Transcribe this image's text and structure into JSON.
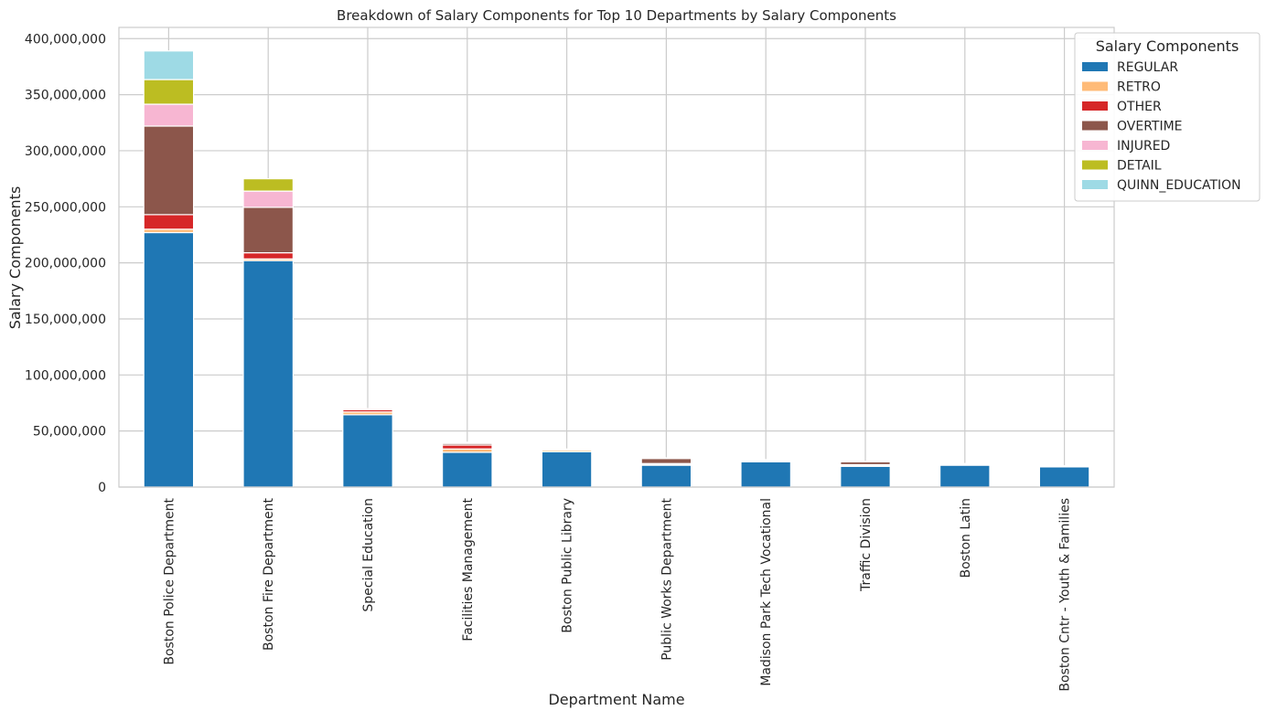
{
  "chart_data": {
    "type": "bar",
    "stacked": true,
    "title": "Breakdown of Salary Components for Top 10 Departments by Salary Components",
    "xlabel": "Department Name",
    "ylabel": "Salary Components",
    "ylim": [
      0,
      410000000
    ],
    "yticks": [
      0,
      50000000,
      100000000,
      150000000,
      200000000,
      250000000,
      300000000,
      350000000,
      400000000
    ],
    "ytick_labels": [
      "0",
      "50,000,000",
      "100,000,000",
      "150,000,000",
      "200,000,000",
      "250,000,000",
      "300,000,000",
      "350,000,000",
      "400,000,000"
    ],
    "grid": true,
    "legend_title": "Salary Components",
    "legend_position": "top-right",
    "categories": [
      "Boston Police Department",
      "Boston Fire Department",
      "Special Education",
      "Facilities Management",
      "Boston Public Library",
      "Public Works Department",
      "Madison Park Tech Vocational",
      "Traffic Division",
      "Boston Latin",
      "Boston Cntr - Youth & Families"
    ],
    "series": [
      {
        "name": "REGULAR",
        "color": "#1f77b4",
        "values": [
          227000000,
          202000000,
          64500000,
          31000000,
          31500000,
          19500000,
          22500000,
          18500000,
          19500000,
          18000000
        ]
      },
      {
        "name": "RETRO",
        "color": "#ffbb78",
        "values": [
          3000000,
          1500000,
          2500000,
          3000000,
          1500000,
          500000,
          1000000,
          500000,
          1000000,
          500000
        ]
      },
      {
        "name": "OTHER",
        "color": "#d62728",
        "values": [
          13000000,
          5500000,
          2000000,
          3500000,
          500000,
          1000000,
          500000,
          1000000,
          500000,
          500000
        ]
      },
      {
        "name": "OVERTIME",
        "color": "#8c564b",
        "values": [
          79000000,
          40500000,
          500000,
          1500000,
          500000,
          4500000,
          500000,
          2500000,
          0,
          0
        ]
      },
      {
        "name": "INJURED",
        "color": "#f7b6d2",
        "values": [
          19500000,
          14500000,
          500000,
          500000,
          0,
          500000,
          0,
          500000,
          0,
          0
        ]
      },
      {
        "name": "DETAIL",
        "color": "#bcbd22",
        "values": [
          22000000,
          11000000,
          0,
          500000,
          0,
          0,
          0,
          0,
          0,
          0
        ]
      },
      {
        "name": "QUINN_EDUCATION",
        "color": "#9edae5",
        "values": [
          25500000,
          0,
          0,
          0,
          0,
          0,
          0,
          0,
          0,
          0
        ]
      }
    ]
  }
}
